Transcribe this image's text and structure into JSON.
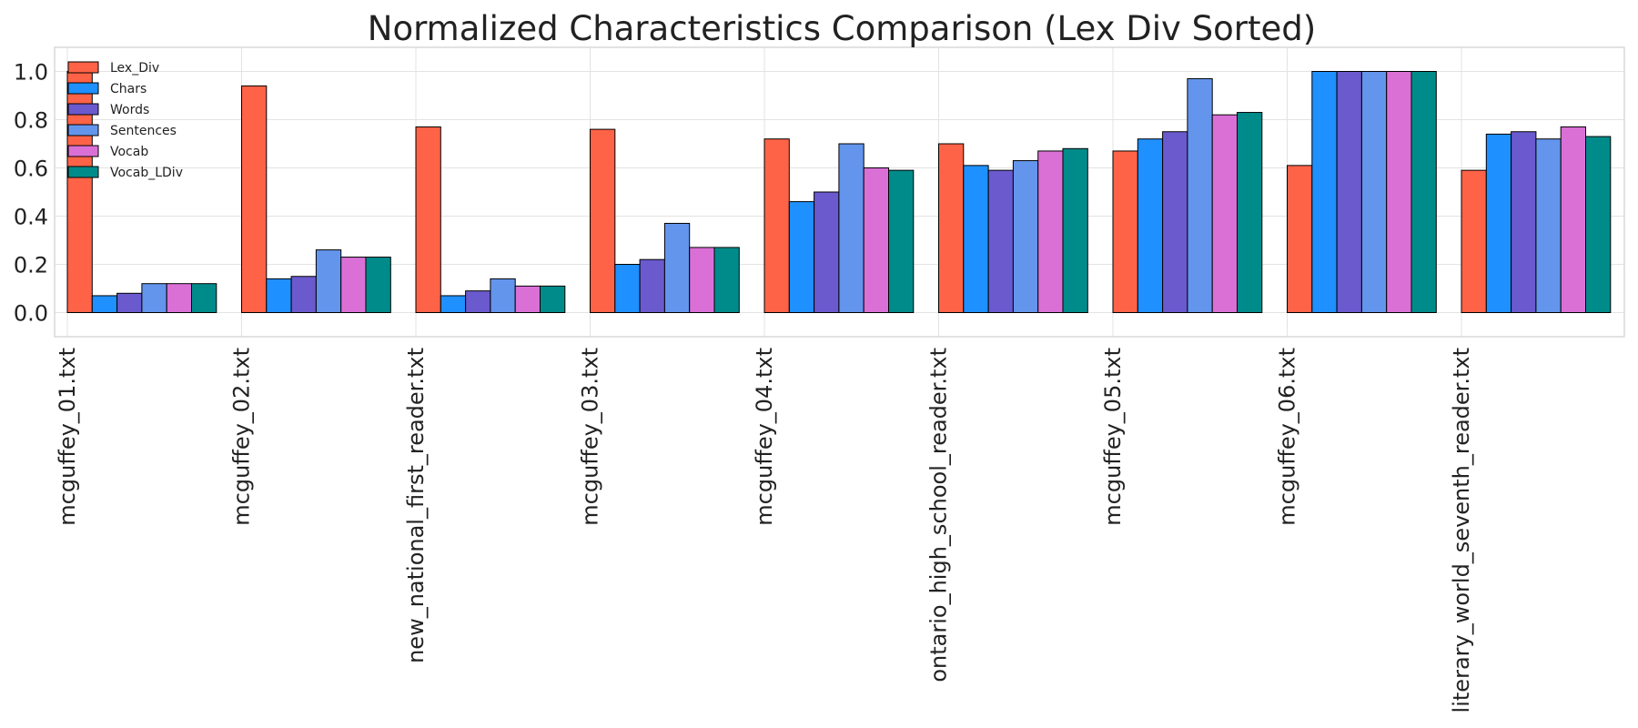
{
  "chart_data": {
    "type": "bar",
    "title": "Normalized Characteristics Comparison (Lex Div Sorted)",
    "xlabel": "",
    "ylabel": "",
    "ylim": [
      -0.1,
      1.1
    ],
    "yticks": [
      "0.0",
      "0.2",
      "0.4",
      "0.6",
      "0.8",
      "1.0"
    ],
    "grid": true,
    "legend_position": "top-left",
    "categories": [
      "mcguffey_01.txt",
      "mcguffey_02.txt",
      "new_national_first_reader.txt",
      "mcguffey_03.txt",
      "mcguffey_04.txt",
      "ontario_high_school_reader.txt",
      "mcguffey_05.txt",
      "mcguffey_06.txt",
      "literary_world_seventh_reader.txt"
    ],
    "series": [
      {
        "name": "Lex_Div",
        "color": "#ff6347",
        "values": [
          1.0,
          0.94,
          0.77,
          0.76,
          0.72,
          0.7,
          0.67,
          0.61,
          0.59
        ]
      },
      {
        "name": "Chars",
        "color": "#1e90ff",
        "values": [
          0.07,
          0.14,
          0.07,
          0.2,
          0.46,
          0.61,
          0.72,
          1.0,
          0.74
        ]
      },
      {
        "name": "Words",
        "color": "#6a5acd",
        "values": [
          0.08,
          0.15,
          0.09,
          0.22,
          0.5,
          0.59,
          0.75,
          1.0,
          0.75
        ]
      },
      {
        "name": "Sentences",
        "color": "#6495ed",
        "values": [
          0.12,
          0.26,
          0.14,
          0.37,
          0.7,
          0.63,
          0.97,
          1.0,
          0.72
        ]
      },
      {
        "name": "Vocab",
        "color": "#da70d6",
        "values": [
          0.12,
          0.23,
          0.11,
          0.27,
          0.6,
          0.67,
          0.82,
          1.0,
          0.77
        ]
      },
      {
        "name": "Vocab_LDiv",
        "color": "#008b8b",
        "values": [
          0.12,
          0.23,
          0.11,
          0.27,
          0.59,
          0.68,
          0.83,
          1.0,
          0.73
        ]
      }
    ]
  }
}
